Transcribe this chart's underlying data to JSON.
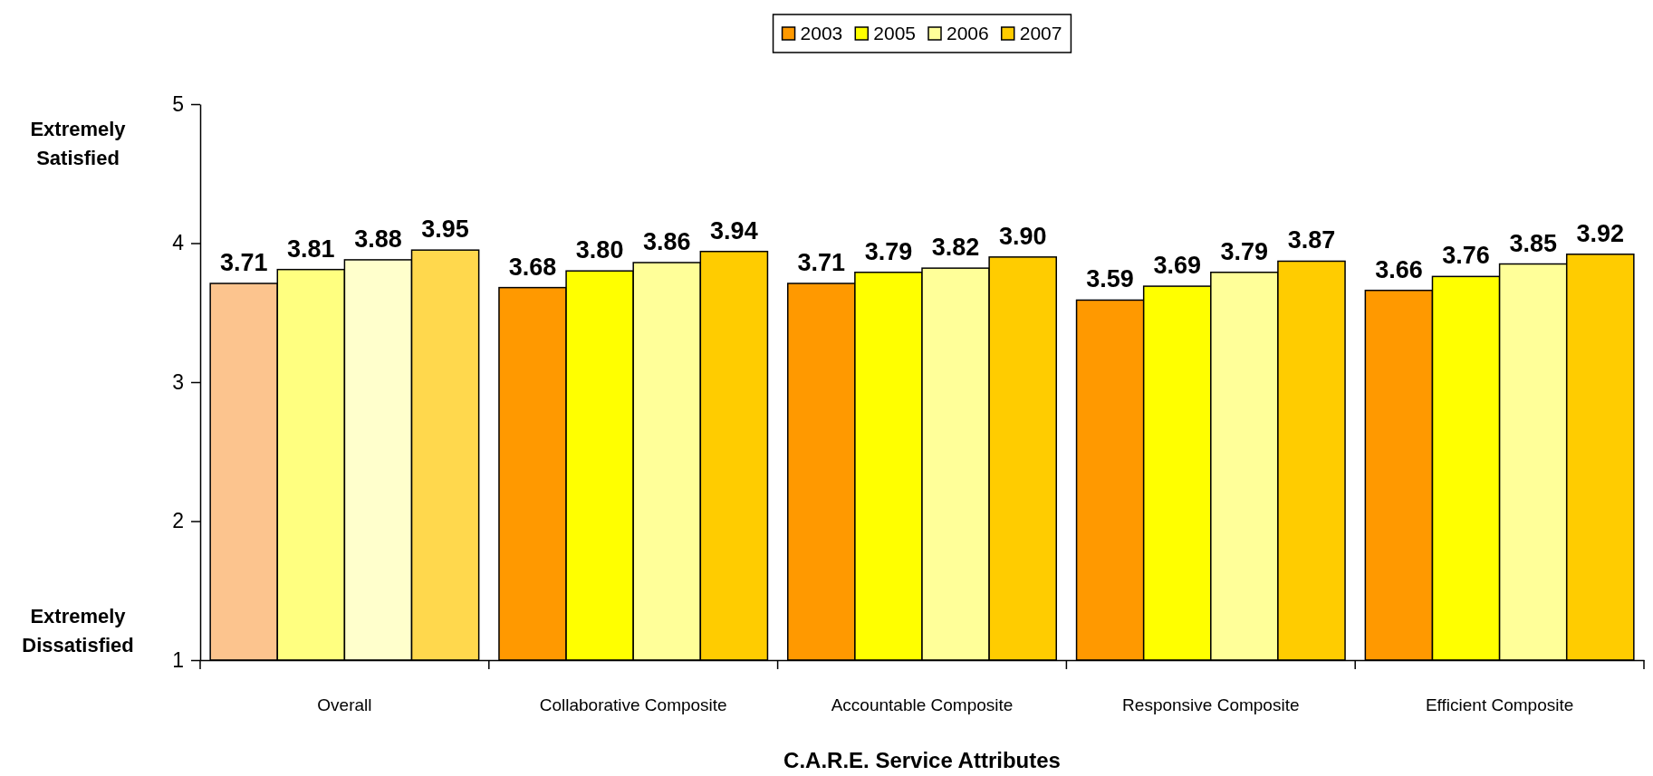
{
  "chart_data": {
    "type": "bar",
    "xlabel": "C.A.R.E. Service Attributes",
    "categories": [
      "Overall",
      "Collaborative Composite",
      "Accountable Composite",
      "Responsive Composite",
      "Efficient Composite"
    ],
    "series": [
      {
        "name": "2003",
        "color": "#ff9900",
        "colors": [
          "#fcc48e",
          "#ff9900",
          "#ff9900",
          "#ff9900",
          "#ff9900"
        ],
        "values": [
          3.71,
          3.68,
          3.71,
          3.59,
          3.66
        ],
        "value_labels": [
          "3.71",
          "3.68",
          "3.71",
          "3.59",
          "3.66"
        ]
      },
      {
        "name": "2005",
        "color": "#ffff00",
        "colors": [
          "#ffff80",
          "#ffff00",
          "#ffff00",
          "#ffff00",
          "#ffff00"
        ],
        "values": [
          3.81,
          3.8,
          3.79,
          3.69,
          3.76
        ],
        "value_labels": [
          "3.81",
          "3.80",
          "3.79",
          "3.69",
          "3.76"
        ]
      },
      {
        "name": "2006",
        "color": "#ffff99",
        "colors": [
          "#ffffcc",
          "#ffff99",
          "#ffff99",
          "#ffff99",
          "#ffff99"
        ],
        "values": [
          3.88,
          3.86,
          3.82,
          3.79,
          3.85
        ],
        "value_labels": [
          "3.88",
          "3.86",
          "3.82",
          "3.79",
          "3.85"
        ]
      },
      {
        "name": "2007",
        "color": "#ffcc00",
        "colors": [
          "#ffd84d",
          "#ffcc00",
          "#ffcc00",
          "#ffcc00",
          "#ffcc00"
        ],
        "values": [
          3.95,
          3.94,
          3.9,
          3.87,
          3.92
        ],
        "value_labels": [
          "3.95",
          "3.94",
          "3.90",
          "3.87",
          "3.92"
        ]
      }
    ],
    "ylim": [
      1,
      5
    ],
    "yticks": [
      1,
      2,
      3,
      4,
      5
    ],
    "legend": "top",
    "annotations": [
      "Extremely Satisfied",
      "Extremely Dissatisfied"
    ]
  }
}
